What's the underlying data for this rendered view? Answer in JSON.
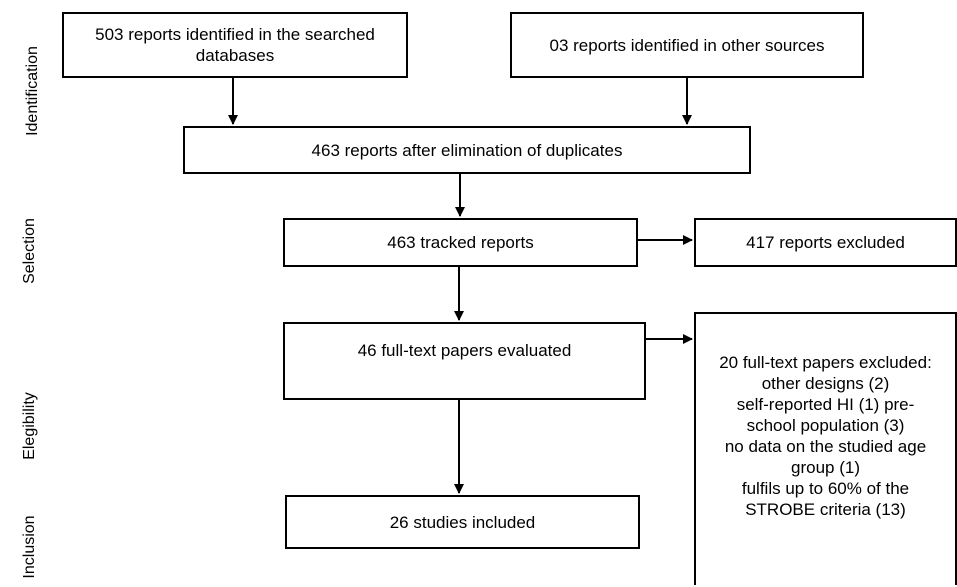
{
  "stages": {
    "identification": "Identification",
    "selection": "Selection",
    "elegibility": "Elegibility",
    "inclusion": "Inclusion"
  },
  "boxes": {
    "db_reports": [
      "503 reports identified in the searched",
      "databases"
    ],
    "other_reports": "03 reports identified in other sources",
    "after_duplicates": "463 reports after elimination of duplicates",
    "tracked": "463 tracked reports",
    "excluded_reports": "417 reports excluded",
    "full_text_evaluated": "46 full-text papers evaluated",
    "excluded_papers": [
      "20 full-text papers excluded:",
      "other designs (2)",
      "self-reported HI (1) pre-",
      "school population (3)",
      "no data on the studied age",
      "group (1)",
      "fulfils up to 60% of the",
      "STROBE criteria (13)"
    ],
    "included": "26 studies included"
  }
}
